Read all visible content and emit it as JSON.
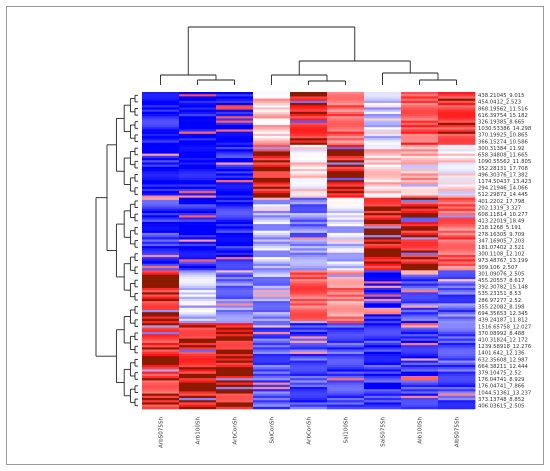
{
  "chart_data": {
    "type": "heatmap",
    "title": "",
    "xlabel": "",
    "ylabel": "",
    "grid": false,
    "legend": "none",
    "colors": {
      "low": "#0000ff",
      "mid": "#ffffff",
      "high": "#ff0000",
      "dark_high": "#8b1a00"
    },
    "columns": [
      "ArbS075Sh",
      "Arb100Sh",
      "ArbConSh",
      "SalConSh",
      "ArbConSh",
      "Sal100Sh",
      "SalS075Sh",
      "Alb100Sh",
      "AlbS075Sh"
    ],
    "rows": [
      "438.21045_9.015",
      "454.0412_2.523",
      "868.19562_11.516",
      "616.39754_15.182",
      "326.19385_8.665",
      "1030.53386_14.298",
      "370.19925_10.865",
      "366.15274_10.586",
      "300.31384_11.92",
      "658.34808_11.665",
      "1090.55562_11.805",
      "352.28131_17.708",
      "496.30376_17.382",
      "1174.50437_13.423",
      "294.21946_14.066",
      "512.29872_14.445",
      "401.2202_17.798",
      "202.1319_3.327",
      "608.11814_10.277",
      "413.22019_18.49",
      "218.1268_5.191",
      "278.16305_9.709",
      "347.16905_7.203",
      "181.07402_2.521",
      "300.1108_12.102",
      "973.48767_13.199",
      "309.106_2.507",
      "301.09076_2.505",
      "455.20557_8.617",
      "392.30782_15.148",
      "535.23151_8.53",
      "286.97277_2.52",
      "355.22082_8.198",
      "694.35653_12.345",
      "439.24187_11.812",
      "1516.65758_12.027",
      "370.08992_8.488",
      "410.31824_12.172",
      "1239.58918_12.276",
      "1401.642_12.136",
      "632.35608_12.987",
      "664.38211_12.444",
      "379.10475_2.52",
      "176.04741_8.929",
      "176.04741_7.866",
      "1044.51361_13.237",
      "373.13748_8.852",
      "406.03615_2.505"
    ],
    "block_pattern": [
      {
        "rows": "1-8",
        "values": [
          -0.9,
          -1.0,
          -1.0,
          0.2,
          0.9,
          0.6,
          -0.2,
          0.7,
          0.8
        ]
      },
      {
        "rows": "9-16",
        "values": [
          -0.9,
          -1.0,
          -0.9,
          0.9,
          0.1,
          0.9,
          0.2,
          0.3,
          0.1
        ]
      },
      {
        "rows": "17-27",
        "values": [
          -0.8,
          -0.9,
          -0.9,
          -0.3,
          -0.5,
          -0.2,
          0.9,
          0.9,
          0.6
        ]
      },
      {
        "rows": "28-35",
        "values": [
          0.9,
          -0.2,
          -0.5,
          -0.4,
          0.6,
          0.5,
          -0.9,
          -0.7,
          -0.6
        ]
      },
      {
        "rows": "36-48",
        "values": [
          0.8,
          0.9,
          0.9,
          -0.6,
          -0.7,
          -0.7,
          -0.8,
          -0.8,
          -0.7
        ]
      }
    ]
  }
}
